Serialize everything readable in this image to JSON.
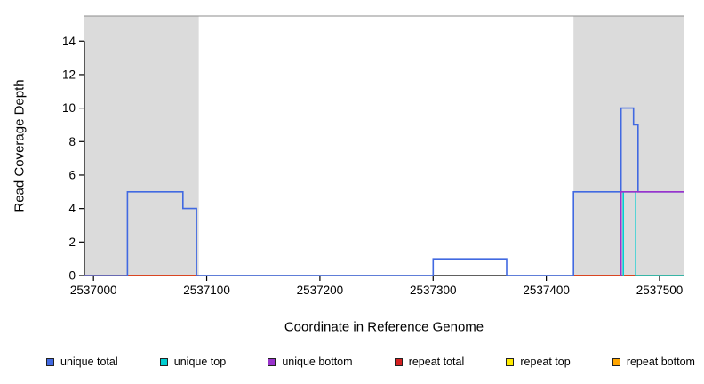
{
  "figure": {
    "y_axis_label": "Read Coverage Depth",
    "x_axis_label": "Coordinate in Reference Genome"
  },
  "legend": {
    "items": [
      {
        "label": "unique total",
        "color": "#4169E1"
      },
      {
        "label": "unique top",
        "color": "#00CED1"
      },
      {
        "label": "unique bottom",
        "color": "#9932CC"
      },
      {
        "label": "repeat total",
        "color": "#D42020"
      },
      {
        "label": "repeat top",
        "color": "#FFEB00"
      },
      {
        "label": "repeat bottom",
        "color": "#FFA500"
      }
    ]
  },
  "chart_data": {
    "type": "line",
    "step": true,
    "title": "",
    "xlabel": "Coordinate in Reference Genome",
    "ylabel": "Read Coverage Depth",
    "x_range": [
      2536992,
      2537522
    ],
    "y_range": [
      0,
      15.5
    ],
    "x_ticks": [
      2537000,
      2537100,
      2537200,
      2537300,
      2537400,
      2537500
    ],
    "y_ticks": [
      0,
      2,
      4,
      6,
      8,
      10,
      12,
      14
    ],
    "grid": false,
    "legend_position": "bottom",
    "colors": {
      "shaded_region": "#DBDBDB",
      "plot_top_border": "#8C8C8C",
      "axis": "#000000"
    },
    "shaded_regions": [
      {
        "x0": 2536992,
        "x1": 2537093
      },
      {
        "x0": 2537424,
        "x1": 2537522
      }
    ],
    "series": [
      {
        "name": "repeat top",
        "color": "#FFEB00",
        "segments": [
          [
            [
              2536992,
              0
            ],
            [
              2537093,
              0
            ]
          ],
          [
            [
              2537424,
              0
            ],
            [
              2537522,
              0
            ]
          ]
        ]
      },
      {
        "name": "repeat bottom",
        "color": "#FFA500",
        "segments": [
          [
            [
              2536992,
              0
            ],
            [
              2537093,
              0
            ]
          ],
          [
            [
              2537424,
              0
            ],
            [
              2537522,
              0
            ]
          ]
        ]
      },
      {
        "name": "repeat total",
        "color": "#D42020",
        "segments": [
          [
            [
              2536992,
              0
            ],
            [
              2537093,
              0
            ]
          ],
          [
            [
              2537424,
              0
            ],
            [
              2537522,
              0
            ]
          ]
        ]
      },
      {
        "name": "unique total",
        "color": "#4169E1",
        "segments": [
          [
            [
              2536992,
              0
            ],
            [
              2537030,
              0
            ],
            [
              2537030,
              5
            ],
            [
              2537079,
              5
            ],
            [
              2537079,
              4
            ],
            [
              2537091,
              4
            ],
            [
              2537091,
              0
            ],
            [
              2537300,
              0
            ],
            [
              2537300,
              1
            ],
            [
              2537365,
              1
            ],
            [
              2537365,
              0
            ],
            [
              2537424,
              0
            ],
            [
              2537424,
              5
            ],
            [
              2537466,
              5
            ],
            [
              2537466,
              10
            ],
            [
              2537477,
              10
            ],
            [
              2537477,
              9
            ],
            [
              2537481,
              9
            ],
            [
              2537481,
              5
            ],
            [
              2537522,
              5
            ]
          ]
        ]
      },
      {
        "name": "unique top",
        "color": "#00CED1",
        "segments": [
          [
            [
              2537468,
              0
            ],
            [
              2537468,
              5
            ],
            [
              2537479,
              5
            ],
            [
              2537479,
              0
            ],
            [
              2537522,
              0
            ]
          ]
        ]
      },
      {
        "name": "unique bottom",
        "color": "#9932CC",
        "segments": [
          [
            [
              2537466,
              0
            ],
            [
              2537466,
              5
            ],
            [
              2537522,
              5
            ]
          ]
        ]
      }
    ]
  }
}
